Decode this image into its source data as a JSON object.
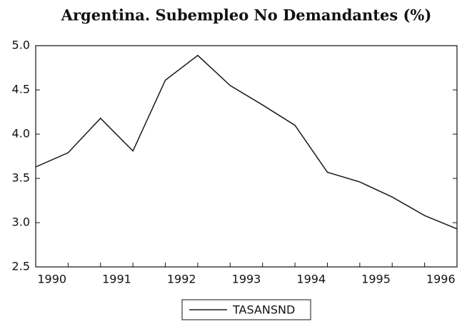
{
  "chart_data": {
    "type": "line",
    "title": "Argentina. Subempleo No Demandantes (%)",
    "categories": [
      "1990",
      null,
      "1991",
      null,
      "1992",
      null,
      "1993",
      null,
      "1994",
      null,
      "1995",
      null,
      "1996",
      null
    ],
    "series": [
      {
        "name": "TASANSND",
        "color": "#1a1a1a",
        "values": [
          3.63,
          3.79,
          4.18,
          3.81,
          4.61,
          4.89,
          4.55,
          4.33,
          4.1,
          3.57,
          3.46,
          3.29,
          3.08,
          2.93
        ]
      }
    ],
    "ylim": [
      2.5,
      5.0
    ],
    "yticks": [
      {
        "value": 2.5,
        "label": "2.5"
      },
      {
        "value": 3,
        "label": "3.0"
      },
      3.5,
      {
        "value": 4,
        "label": "4.0"
      },
      4.5,
      {
        "value": 5,
        "label": "5.0"
      }
    ],
    "legend": "bottom"
  }
}
